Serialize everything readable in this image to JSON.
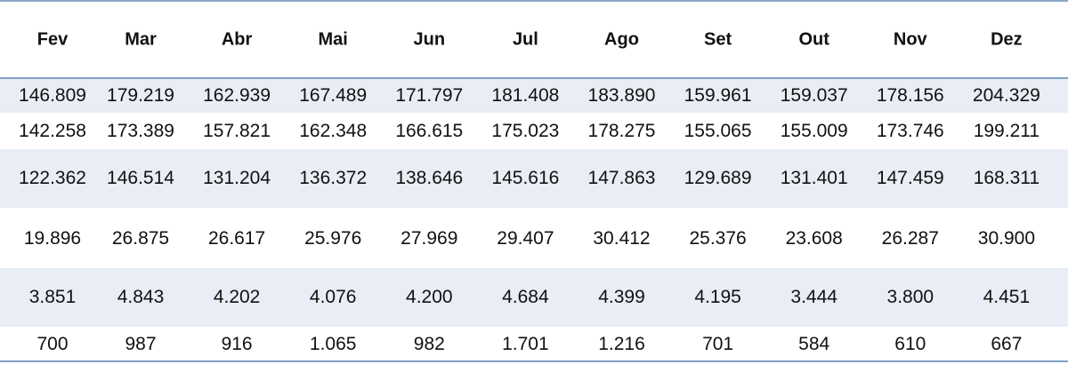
{
  "header": {
    "months": [
      "Fev",
      "Mar",
      "Abr",
      "Mai",
      "Jun",
      "Jul",
      "Ago",
      "Set",
      "Out",
      "Nov",
      "Dez"
    ]
  },
  "table": {
    "rows": [
      [
        "146.809",
        "179.219",
        "162.939",
        "167.489",
        "171.797",
        "181.408",
        "183.890",
        "159.961",
        "159.037",
        "178.156",
        "204.329"
      ],
      [
        "142.258",
        "173.389",
        "157.821",
        "162.348",
        "166.615",
        "175.023",
        "178.275",
        "155.065",
        "155.009",
        "173.746",
        "199.211"
      ],
      [
        "122.362",
        "146.514",
        "131.204",
        "136.372",
        "138.646",
        "145.616",
        "147.863",
        "129.689",
        "131.401",
        "147.459",
        "168.311"
      ],
      [
        "19.896",
        "26.875",
        "26.617",
        "25.976",
        "27.969",
        "29.407",
        "30.412",
        "25.376",
        "23.608",
        "26.287",
        "30.900"
      ],
      [
        "3.851",
        "4.843",
        "4.202",
        "4.076",
        "4.200",
        "4.684",
        "4.399",
        "4.195",
        "3.444",
        "3.800",
        "4.451"
      ],
      [
        "700",
        "987",
        "916",
        "1.065",
        "982",
        "1.701",
        "1.216",
        "701",
        "584",
        "610",
        "667"
      ]
    ]
  }
}
